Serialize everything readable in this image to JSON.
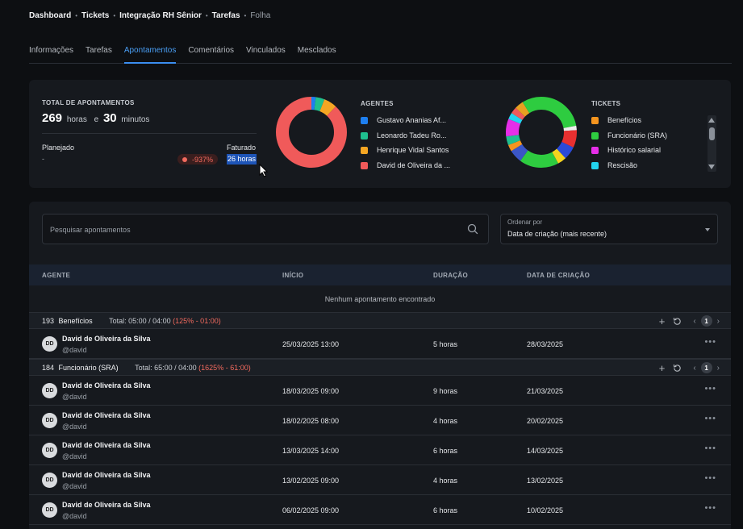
{
  "breadcrumb": [
    "Dashboard",
    "Tickets",
    "Integração RH Sênior",
    "Tarefas",
    "Folha"
  ],
  "tabs": [
    {
      "label": "Informações",
      "active": false
    },
    {
      "label": "Tarefas",
      "active": false
    },
    {
      "label": "Apontamentos",
      "active": true
    },
    {
      "label": "Comentários",
      "active": false
    },
    {
      "label": "Vinculados",
      "active": false
    },
    {
      "label": "Mesclados",
      "active": false
    }
  ],
  "summary": {
    "total_label": "TOTAL DE APONTAMENTOS",
    "hours": "269",
    "hours_unit": "horas",
    "and": "e",
    "minutes": "30",
    "minutes_unit": "minutos",
    "planned_label": "Planejado",
    "planned_value": "-",
    "billed_label": "Faturado",
    "diff_badge": "-937%",
    "billed_value": "26 horas"
  },
  "agents": {
    "title": "AGENTES",
    "items": [
      {
        "label": "Gustavo Ananias Af...",
        "color": "#1e7ff0"
      },
      {
        "label": "Leonardo Tadeu Ro...",
        "color": "#1fbf8f"
      },
      {
        "label": "Henrique Vidal Santos",
        "color": "#f5a623"
      },
      {
        "label": "David de Oliveira da ...",
        "color": "#f05a5a"
      }
    ],
    "share_pct": [
      2,
      4,
      6,
      88
    ]
  },
  "tickets": {
    "title": "TICKETS",
    "items": [
      {
        "label": "Benefícios",
        "color": "#f5951f"
      },
      {
        "label": "Funcionário (SRA)",
        "color": "#2ecc40"
      },
      {
        "label": "Histórico salarial",
        "color": "#e52ee8"
      },
      {
        "label": "Rescisão",
        "color": "#22d3ee"
      }
    ],
    "segments": [
      {
        "color": "#2ecc40",
        "pct": 22
      },
      {
        "color": "#eeeeee",
        "pct": 2
      },
      {
        "color": "#e83030",
        "pct": 8
      },
      {
        "color": "#2b4ad8",
        "pct": 6
      },
      {
        "color": "#f5d31f",
        "pct": 4
      },
      {
        "color": "#2ecc40",
        "pct": 18
      },
      {
        "color": "#3b56c7",
        "pct": 6
      },
      {
        "color": "#f5951f",
        "pct": 3
      },
      {
        "color": "#1fbf8f",
        "pct": 4
      },
      {
        "color": "#e52ee8",
        "pct": 8
      },
      {
        "color": "#22d3ee",
        "pct": 3
      },
      {
        "color": "#f05a5a",
        "pct": 3
      },
      {
        "color": "#e8a020",
        "pct": 4
      },
      {
        "color": "#2ecc40",
        "pct": 9
      }
    ]
  },
  "search": {
    "placeholder": "Pesquisar apontamentos"
  },
  "sort": {
    "label": "Ordenar por",
    "value": "Data de criação (mais recente)"
  },
  "table": {
    "headers": [
      "AGENTE",
      "INÍCIO",
      "DURAÇÃO",
      "DATA DE CRIAÇÃO"
    ],
    "empty_message": "Nenhum apontamento encontrado"
  },
  "groups": [
    {
      "count": "193",
      "name": "Benefícios",
      "total": "Total: 05:00 / 04:00",
      "pct": "(125% - 01:00)",
      "page": "1"
    },
    {
      "count": "184",
      "name": "Funcionário (SRA)",
      "total": "Total: 65:00 / 04:00",
      "pct": "(1625% - 61:00)",
      "page": "1"
    }
  ],
  "rows": [
    {
      "initials": "DD",
      "name": "David de Oliveira da Silva",
      "handle": "@david",
      "start": "25/03/2025 13:00",
      "duration": "5 horas",
      "created": "28/03/2025"
    },
    {
      "initials": "DD",
      "name": "David de Oliveira da Silva",
      "handle": "@david",
      "start": "18/03/2025 09:00",
      "duration": "9 horas",
      "created": "21/03/2025"
    },
    {
      "initials": "DD",
      "name": "David de Oliveira da Silva",
      "handle": "@david",
      "start": "18/02/2025 08:00",
      "duration": "4 horas",
      "created": "20/02/2025"
    },
    {
      "initials": "DD",
      "name": "David de Oliveira da Silva",
      "handle": "@david",
      "start": "13/03/2025 14:00",
      "duration": "6 horas",
      "created": "14/03/2025"
    },
    {
      "initials": "DD",
      "name": "David de Oliveira da Silva",
      "handle": "@david",
      "start": "13/02/2025 09:00",
      "duration": "4 horas",
      "created": "13/02/2025"
    },
    {
      "initials": "DD",
      "name": "David de Oliveira da Silva",
      "handle": "@david",
      "start": "06/02/2025 09:00",
      "duration": "6 horas",
      "created": "10/02/2025"
    }
  ]
}
